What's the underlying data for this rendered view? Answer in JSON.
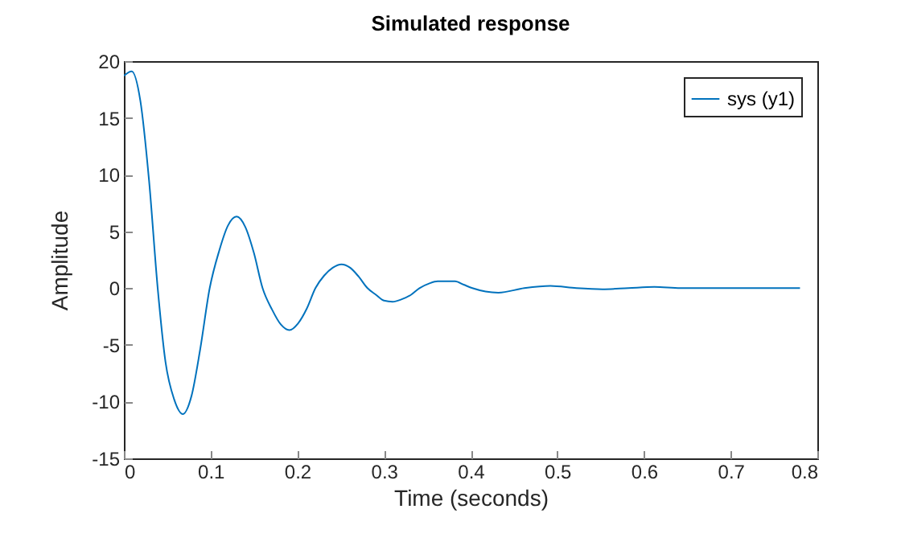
{
  "chart_data": {
    "type": "line",
    "title": "Simulated response",
    "xlabel": "Time (seconds)",
    "ylabel": "Amplitude",
    "x": [
      0,
      0.009,
      0.019,
      0.029,
      0.039,
      0.048,
      0.058,
      0.068,
      0.078,
      0.088,
      0.099,
      0.11,
      0.12,
      0.13,
      0.14,
      0.15,
      0.16,
      0.171,
      0.181,
      0.191,
      0.201,
      0.211,
      0.221,
      0.231,
      0.241,
      0.251,
      0.261,
      0.271,
      0.281,
      0.291,
      0.3,
      0.31,
      0.32,
      0.331,
      0.341,
      0.352,
      0.362,
      0.372,
      0.382,
      0.392,
      0.402,
      0.432,
      0.462,
      0.492,
      0.522,
      0.552,
      0.582,
      0.612,
      0.642,
      0.672,
      0.702,
      0.732,
      0.78
    ],
    "series": [
      {
        "name": "sys (y1)",
        "color": "#0072bd",
        "values": [
          18.7,
          19.1,
          16.5,
          9.5,
          0,
          -6.5,
          -9.8,
          -11.1,
          -9.5,
          -5.4,
          0,
          3.3,
          5.5,
          6.3,
          5.4,
          3.1,
          0,
          -1.9,
          -3.2,
          -3.7,
          -3.1,
          -1.8,
          0,
          1.1,
          1.8,
          2.1,
          1.8,
          1.0,
          0,
          -0.6,
          -1.1,
          -1.2,
          -1.0,
          -0.6,
          0,
          0.4,
          0.6,
          0.6,
          0.6,
          0.3,
          0,
          -0.4,
          0,
          0.2,
          0,
          -0.1,
          0,
          0.1,
          0,
          0,
          0,
          0,
          0
        ]
      }
    ],
    "xlim": [
      0,
      0.8
    ],
    "xticks": [
      0,
      0.1,
      0.2,
      0.3,
      0.4,
      0.5,
      0.6,
      0.7,
      0.8
    ],
    "ylim": [
      -15,
      20
    ],
    "yticks": [
      -15,
      -10,
      -5,
      0,
      5,
      10,
      15,
      20
    ],
    "legend": "top right",
    "grid": false,
    "marker": "none",
    "line_style": "solid"
  }
}
